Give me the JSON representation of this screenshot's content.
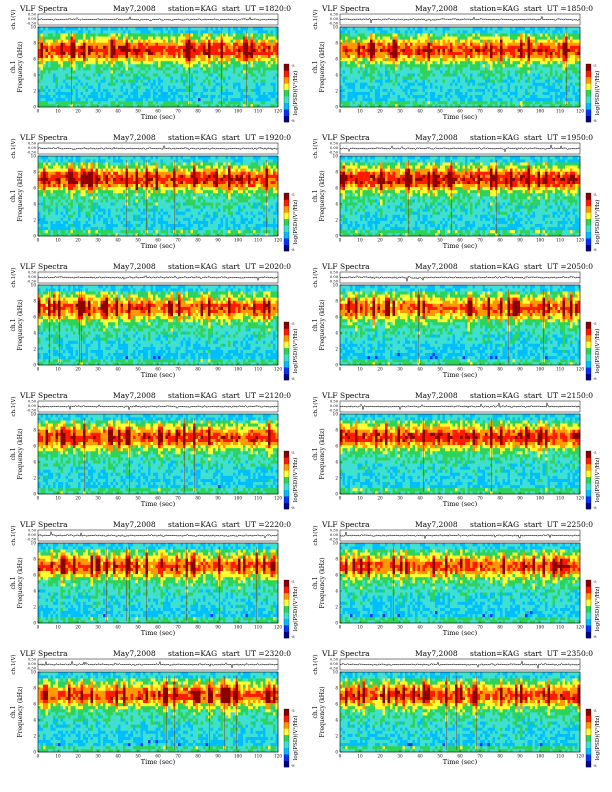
{
  "colors": {
    "spectrum_scale": [
      "#00008b",
      "#0033ff",
      "#00bfff",
      "#40e0d0",
      "#2fd35a",
      "#ffff33",
      "#ff9900",
      "#ff1a00",
      "#8b0000"
    ],
    "axes": "#000000",
    "timeseries": "#000000"
  },
  "chart_data": [
    {
      "type": "heatmap",
      "title": "VLF Spectra",
      "date": "May7,2008",
      "station": "station=KAG",
      "start": "start  UT =1820:0",
      "top_ylabel": "ch.1(V)",
      "top_yticks": [
        "0.50",
        "0.00",
        "-0.50"
      ],
      "top_ylim": [
        -0.5,
        0.5
      ],
      "ylabel_top": "ch.1",
      "ylabel": "Frequency  (kHz)",
      "xlabel": "Time  (sec)",
      "xticks": [
        0,
        10,
        20,
        30,
        40,
        50,
        60,
        70,
        80,
        90,
        100,
        110,
        120
      ],
      "yticks": [
        0,
        2,
        4,
        6,
        8,
        10
      ],
      "xlim": [
        0,
        120
      ],
      "ylim": [
        0,
        10
      ],
      "colorbar_label": "log(PSD)(V²/Hz)",
      "colorbar_ticks": [
        "-5",
        "-8"
      ],
      "seed": 11,
      "intensity": 0.55
    },
    {
      "type": "heatmap",
      "title": "VLF Spectra",
      "date": "May7,2008",
      "station": "station=KAG",
      "start": "start  UT =1850:0",
      "top_ylabel": "ch.1(V)",
      "top_yticks": [
        "0.50",
        "0.00",
        "-0.50"
      ],
      "top_ylim": [
        -0.5,
        0.5
      ],
      "ylabel_top": "ch.1",
      "ylabel": "Frequency  (kHz)",
      "xlabel": "Time  (sec)",
      "xticks": [
        0,
        10,
        20,
        30,
        40,
        50,
        60,
        70,
        80,
        90,
        100,
        110,
        120
      ],
      "yticks": [
        0,
        2,
        4,
        6,
        8,
        10
      ],
      "xlim": [
        0,
        120
      ],
      "ylim": [
        0,
        10
      ],
      "colorbar_label": "log(PSD)(V²/Hz)",
      "colorbar_ticks": [
        "-5",
        "-8"
      ],
      "seed": 23,
      "intensity": 0.55
    },
    {
      "type": "heatmap",
      "title": "VLF Spectra",
      "date": "May7,2008",
      "station": "station=KAG",
      "start": "start  UT =1920:0",
      "top_ylabel": "ch.1(V)",
      "top_yticks": [
        "0.50",
        "0.00",
        "-0.50"
      ],
      "top_ylim": [
        -0.5,
        0.5
      ],
      "ylabel_top": "ch.1",
      "ylabel": "Frequency  (kHz)",
      "xlabel": "Time  (sec)",
      "xticks": [
        0,
        10,
        20,
        30,
        40,
        50,
        60,
        70,
        80,
        90,
        100,
        110,
        120
      ],
      "yticks": [
        0,
        2,
        4,
        6,
        8,
        10
      ],
      "xlim": [
        0,
        120
      ],
      "ylim": [
        0,
        10
      ],
      "colorbar_label": "log(PSD)(V²/Hz)",
      "colorbar_ticks": [
        "-5",
        "-8"
      ],
      "seed": 37,
      "intensity": 0.65
    },
    {
      "type": "heatmap",
      "title": "VLF Spectra",
      "date": "May7,2008",
      "station": "station=KAG",
      "start": "start  UT =1950:0",
      "top_ylabel": "ch.1(V)",
      "top_yticks": [
        "0.50",
        "0.00",
        "-0.50"
      ],
      "top_ylim": [
        -0.5,
        0.5
      ],
      "ylabel_top": "ch.1",
      "ylabel": "Frequency  (kHz)",
      "xlabel": "Time  (sec)",
      "xticks": [
        0,
        10,
        20,
        30,
        40,
        50,
        60,
        70,
        80,
        90,
        100,
        110,
        120
      ],
      "yticks": [
        0,
        2,
        4,
        6,
        8,
        10
      ],
      "xlim": [
        0,
        120
      ],
      "ylim": [
        0,
        10
      ],
      "colorbar_label": "log(PSD)(V²/Hz)",
      "colorbar_ticks": [
        "-5",
        "-8"
      ],
      "seed": 41,
      "intensity": 0.7
    },
    {
      "type": "heatmap",
      "title": "VLF Spectra",
      "date": "May7,2008",
      "station": "station=KAG",
      "start": "start  UT =2020:0",
      "top_ylabel": "ch.1(V)",
      "top_yticks": [
        "0.50",
        "0.00",
        "-0.50"
      ],
      "top_ylim": [
        -0.5,
        0.5
      ],
      "ylabel_top": "ch.1",
      "ylabel": "Frequency  (kHz)",
      "xlabel": "Time  (sec)",
      "xticks": [
        0,
        10,
        20,
        30,
        40,
        50,
        60,
        70,
        80,
        90,
        100,
        110,
        120
      ],
      "yticks": [
        0,
        2,
        4,
        6,
        8,
        10
      ],
      "xlim": [
        0,
        120
      ],
      "ylim": [
        0,
        10
      ],
      "colorbar_label": "log(PSD)(V²/Hz)",
      "colorbar_ticks": [
        "-5",
        "-8"
      ],
      "seed": 53,
      "intensity": 0.4
    },
    {
      "type": "heatmap",
      "title": "VLF Spectra",
      "date": "May7,2008",
      "station": "station=KAG",
      "start": "start  UT =2050:0",
      "top_ylabel": "ch.1(V)",
      "top_yticks": [
        "0.50",
        "0.00",
        "-0.50"
      ],
      "top_ylim": [
        -0.5,
        0.5
      ],
      "ylabel_top": "ch.1",
      "ylabel": "Frequency  (kHz)",
      "xlabel": "Time  (sec)",
      "xticks": [
        0,
        10,
        20,
        30,
        40,
        50,
        60,
        70,
        80,
        90,
        100,
        110,
        120
      ],
      "yticks": [
        0,
        2,
        4,
        6,
        8,
        10
      ],
      "xlim": [
        0,
        120
      ],
      "ylim": [
        0,
        10
      ],
      "colorbar_label": "log(PSD)(V²/Hz)",
      "colorbar_ticks": [
        "-5",
        "-8"
      ],
      "seed": 67,
      "intensity": 0.4
    },
    {
      "type": "heatmap",
      "title": "VLF Spectra",
      "date": "May7,2008",
      "station": "station=KAG",
      "start": "start  UT =2120:0",
      "top_ylabel": "ch.1(V)",
      "top_yticks": [
        "0.50",
        "0.00",
        "-0.50"
      ],
      "top_ylim": [
        -0.5,
        0.5
      ],
      "ylabel_top": "ch.1",
      "ylabel": "Frequency  (kHz)",
      "xlabel": "Time  (sec)",
      "xticks": [
        0,
        10,
        20,
        30,
        40,
        50,
        60,
        70,
        80,
        90,
        100,
        110,
        120
      ],
      "yticks": [
        0,
        2,
        4,
        6,
        8,
        10
      ],
      "xlim": [
        0,
        120
      ],
      "ylim": [
        0,
        10
      ],
      "colorbar_label": "log(PSD)(V²/Hz)",
      "colorbar_ticks": [
        "-5",
        "-8"
      ],
      "seed": 71,
      "intensity": 0.45
    },
    {
      "type": "heatmap",
      "title": "VLF Spectra",
      "date": "May7,2008",
      "station": "station=KAG",
      "start": "start  UT =2150:0",
      "top_ylabel": "ch.1(V)",
      "top_yticks": [
        "0.50",
        "0.00",
        "-0.50"
      ],
      "top_ylim": [
        -0.5,
        0.5
      ],
      "ylabel_top": "ch.1",
      "ylabel": "Frequency  (kHz)",
      "xlabel": "Time  (sec)",
      "xticks": [
        0,
        10,
        20,
        30,
        40,
        50,
        60,
        70,
        80,
        90,
        100,
        110,
        120
      ],
      "yticks": [
        0,
        2,
        4,
        6,
        8,
        10
      ],
      "xlim": [
        0,
        120
      ],
      "ylim": [
        0,
        10
      ],
      "colorbar_label": "log(PSD)(V²/Hz)",
      "colorbar_ticks": [
        "-5",
        "-8"
      ],
      "seed": 83,
      "intensity": 0.6
    },
    {
      "type": "heatmap",
      "title": "VLF Spectra",
      "date": "May7,2008",
      "station": "station=KAG",
      "start": "start  UT =2220:0",
      "top_ylabel": "ch.1(V)",
      "top_yticks": [
        "0.50",
        "0.00",
        "-0.50"
      ],
      "top_ylim": [
        -0.5,
        0.5
      ],
      "ylabel_top": "ch.1",
      "ylabel": "Frequency  (kHz)",
      "xlabel": "Time  (sec)",
      "xticks": [
        0,
        10,
        20,
        30,
        40,
        50,
        60,
        70,
        80,
        90,
        100,
        110,
        120
      ],
      "yticks": [
        0,
        2,
        4,
        6,
        8,
        10
      ],
      "xlim": [
        0,
        120
      ],
      "ylim": [
        0,
        10
      ],
      "colorbar_label": "log(PSD)(V²/Hz)",
      "colorbar_ticks": [
        "-5",
        "-8"
      ],
      "seed": 97,
      "intensity": 0.35
    },
    {
      "type": "heatmap",
      "title": "VLF Spectra",
      "date": "May7,2008",
      "station": "station=KAG",
      "start": "start  UT =2250:0",
      "top_ylabel": "ch.1(V)",
      "top_yticks": [
        "0.50",
        "0.00",
        "-0.50"
      ],
      "top_ylim": [
        -0.5,
        0.5
      ],
      "ylabel_top": "ch.1",
      "ylabel": "Frequency  (kHz)",
      "xlabel": "Time  (sec)",
      "xticks": [
        0,
        10,
        20,
        30,
        40,
        50,
        60,
        70,
        80,
        90,
        100,
        110,
        120
      ],
      "yticks": [
        0,
        2,
        4,
        6,
        8,
        10
      ],
      "xlim": [
        0,
        120
      ],
      "ylim": [
        0,
        10
      ],
      "colorbar_label": "log(PSD)(V²/Hz)",
      "colorbar_ticks": [
        "-5",
        "-8"
      ],
      "seed": 101,
      "intensity": 0.4
    },
    {
      "type": "heatmap",
      "title": "VLF Spectra",
      "date": "May7,2008",
      "station": "station=KAG",
      "start": "start  UT =2320:0",
      "top_ylabel": "ch.1(V)",
      "top_yticks": [
        "0.50",
        "0.00",
        "-0.50"
      ],
      "top_ylim": [
        -0.5,
        0.5
      ],
      "ylabel_top": "ch.1",
      "ylabel": "Frequency  (kHz)",
      "xlabel": "Time  (sec)",
      "xticks": [
        0,
        10,
        20,
        30,
        40,
        50,
        60,
        70,
        80,
        90,
        100,
        110,
        120
      ],
      "yticks": [
        0,
        2,
        4,
        6,
        8,
        10
      ],
      "xlim": [
        0,
        120
      ],
      "ylim": [
        0,
        10
      ],
      "colorbar_label": "log(PSD)(V²/Hz)",
      "colorbar_ticks": [
        "-5",
        "-8"
      ],
      "seed": 113,
      "intensity": 0.4
    },
    {
      "type": "heatmap",
      "title": "VLF Spectra",
      "date": "May7,2008",
      "station": "station=KAG",
      "start": "start  UT =2350:0",
      "top_ylabel": "ch.1(V)",
      "top_yticks": [
        "0.50",
        "0.00",
        "-0.50"
      ],
      "top_ylim": [
        -0.5,
        0.5
      ],
      "ylabel_top": "ch.1",
      "ylabel": "Frequency  (kHz)",
      "xlabel": "Time  (sec)",
      "xticks": [
        0,
        10,
        20,
        30,
        40,
        50,
        60,
        70,
        80,
        90,
        100,
        110,
        120
      ],
      "yticks": [
        0,
        2,
        4,
        6,
        8,
        10
      ],
      "xlim": [
        0,
        120
      ],
      "ylim": [
        0,
        10
      ],
      "colorbar_label": "log(PSD)(V²/Hz)",
      "colorbar_ticks": [
        "-5",
        "-8"
      ],
      "seed": 127,
      "intensity": 0.45
    }
  ]
}
